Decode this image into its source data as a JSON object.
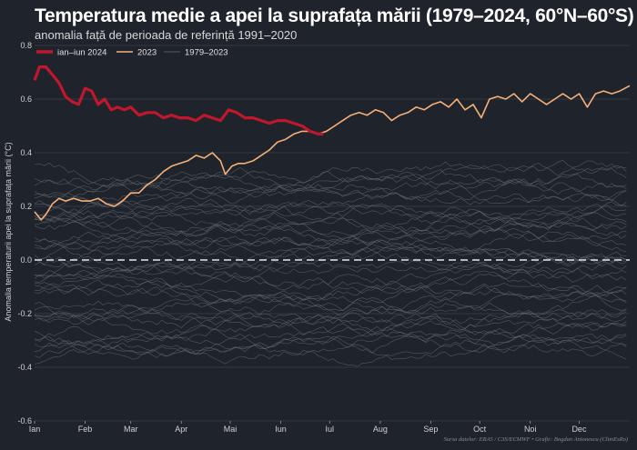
{
  "chart_data": {
    "type": "line",
    "title": "Temperatura medie a apei la suprafața mării (1979–2024, 60°N–60°S)",
    "subtitle": "anomalia față de perioada de referință 1991–2020",
    "ylabel": "Anomalia temperaturii apei la suprafața mării (°C)",
    "source": "Sursa datelor: ERA5 / C3S/ECMWF • Grafic: Bogdan Antonescu (ClimEsRo)",
    "ylim": [
      -0.6,
      0.8
    ],
    "y_ticks": [
      "-0.6",
      "-0.4",
      "-0.2",
      "0.0",
      "0.2",
      "0.4",
      "0.6",
      "0.8"
    ],
    "y_tick_values": [
      -0.6,
      -0.4,
      -0.2,
      0.0,
      0.2,
      0.4,
      0.6,
      0.8
    ],
    "x_ticks": [
      "Ian",
      "Feb",
      "Mar",
      "Apr",
      "Mai",
      "Iun",
      "Iul",
      "Aug",
      "Sep",
      "Oct",
      "Noi",
      "Dec"
    ],
    "x_tick_days": [
      1,
      32,
      60,
      91,
      121,
      152,
      182,
      213,
      244,
      274,
      305,
      335
    ],
    "xlim_days": [
      1,
      366
    ],
    "zero_line": true,
    "legend_position": "top-left",
    "colors": {
      "s2024": "#c0172c",
      "s2023": "#f5b07a",
      "hist": "#6a6e75",
      "zero": "#e6e6e6",
      "grid": "#3a3f48"
    },
    "series": [
      {
        "name": "ian–iun 2024",
        "x": [
          1,
          4,
          8,
          12,
          16,
          20,
          24,
          28,
          32,
          36,
          40,
          44,
          48,
          52,
          56,
          60,
          65,
          70,
          75,
          80,
          85,
          90,
          95,
          100,
          105,
          110,
          115,
          120,
          125,
          130,
          135,
          140,
          145,
          150,
          155,
          160,
          165,
          170,
          175,
          178
        ],
        "y": [
          0.67,
          0.72,
          0.72,
          0.69,
          0.66,
          0.61,
          0.59,
          0.58,
          0.64,
          0.63,
          0.58,
          0.6,
          0.56,
          0.57,
          0.56,
          0.57,
          0.54,
          0.55,
          0.55,
          0.53,
          0.54,
          0.53,
          0.53,
          0.52,
          0.54,
          0.53,
          0.52,
          0.56,
          0.55,
          0.53,
          0.53,
          0.52,
          0.51,
          0.52,
          0.52,
          0.51,
          0.5,
          0.48,
          0.47,
          0.47
        ]
      },
      {
        "name": "2023",
        "x": [
          1,
          5,
          8,
          12,
          16,
          20,
          25,
          30,
          35,
          40,
          45,
          50,
          55,
          60,
          65,
          70,
          75,
          80,
          85,
          90,
          95,
          100,
          105,
          110,
          115,
          118,
          122,
          126,
          130,
          135,
          140,
          145,
          150,
          155,
          160,
          165,
          170,
          175,
          180,
          185,
          190,
          195,
          200,
          205,
          210,
          215,
          220,
          225,
          230,
          235,
          240,
          245,
          250,
          255,
          260,
          265,
          270,
          275,
          280,
          285,
          290,
          295,
          300,
          305,
          310,
          315,
          320,
          325,
          330,
          335,
          340,
          345,
          350,
          355,
          360,
          366
        ],
        "y": [
          0.18,
          0.15,
          0.17,
          0.21,
          0.23,
          0.22,
          0.23,
          0.22,
          0.22,
          0.23,
          0.21,
          0.2,
          0.22,
          0.25,
          0.25,
          0.28,
          0.3,
          0.33,
          0.35,
          0.36,
          0.37,
          0.39,
          0.38,
          0.4,
          0.37,
          0.32,
          0.35,
          0.36,
          0.36,
          0.37,
          0.39,
          0.41,
          0.44,
          0.45,
          0.47,
          0.48,
          0.48,
          0.47,
          0.48,
          0.5,
          0.52,
          0.54,
          0.55,
          0.54,
          0.56,
          0.55,
          0.52,
          0.54,
          0.55,
          0.57,
          0.56,
          0.58,
          0.59,
          0.57,
          0.6,
          0.56,
          0.58,
          0.53,
          0.6,
          0.61,
          0.6,
          0.62,
          0.59,
          0.62,
          0.6,
          0.58,
          0.6,
          0.62,
          0.6,
          0.62,
          0.57,
          0.62,
          0.63,
          0.62,
          0.63,
          0.65
        ]
      }
    ],
    "historical": {
      "name": "1979–2023",
      "years": 44,
      "x_days": [
        1,
        32,
        60,
        91,
        121,
        152,
        182,
        213,
        244,
        274,
        305,
        335,
        366
      ],
      "ranges": [
        -0.45,
        0.43
      ]
    }
  }
}
